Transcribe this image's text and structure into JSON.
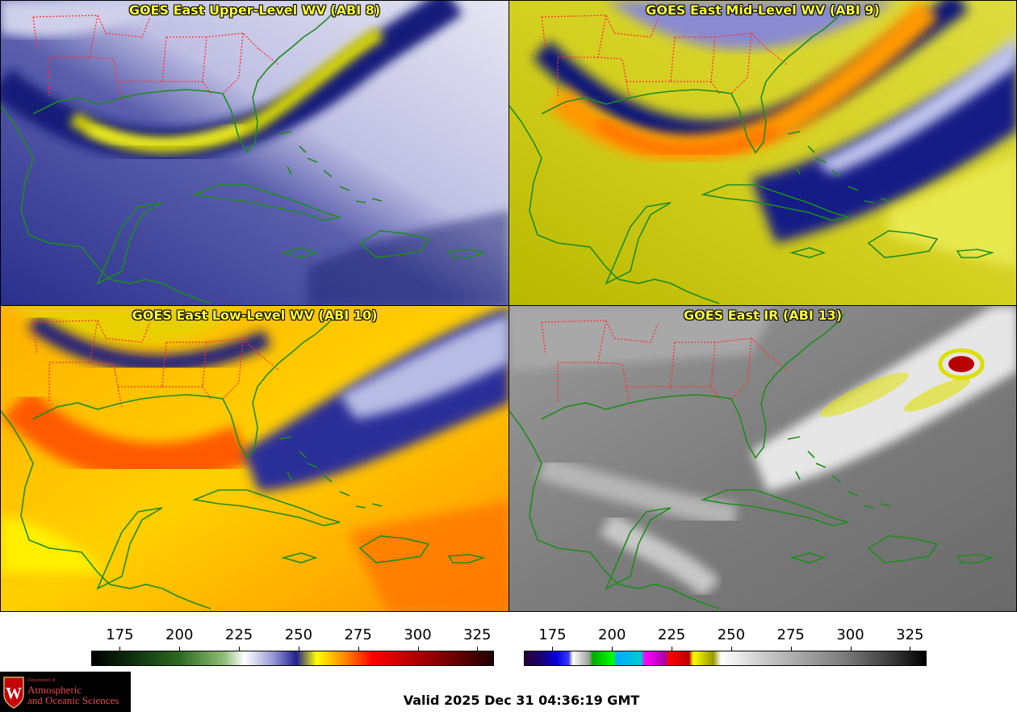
{
  "panels": {
    "upper": {
      "title": "GOES East Upper-Level WV (ABI 8)"
    },
    "mid": {
      "title": "GOES East Mid-Level WV (ABI 9)"
    },
    "low": {
      "title": "GOES East Low-Level WV (ABI 10)"
    },
    "ir": {
      "title": "GOES East IR (ABI 13)"
    }
  },
  "colorbar_wv": {
    "ticks": [
      "175",
      "200",
      "225",
      "250",
      "275",
      "300",
      "325"
    ]
  },
  "colorbar_ir": {
    "ticks": [
      "175",
      "200",
      "225",
      "250",
      "275",
      "300",
      "325"
    ]
  },
  "logo": {
    "line1": "Department of",
    "line2": "Atmospheric",
    "line3": "and Oceanic Sciences"
  },
  "footer": {
    "valid": "Valid 2025 Dec 31 04:36:19 GMT"
  },
  "colors": {
    "title": "#ffff33",
    "coast": "#1e8c1e",
    "state": "#ff3030"
  }
}
